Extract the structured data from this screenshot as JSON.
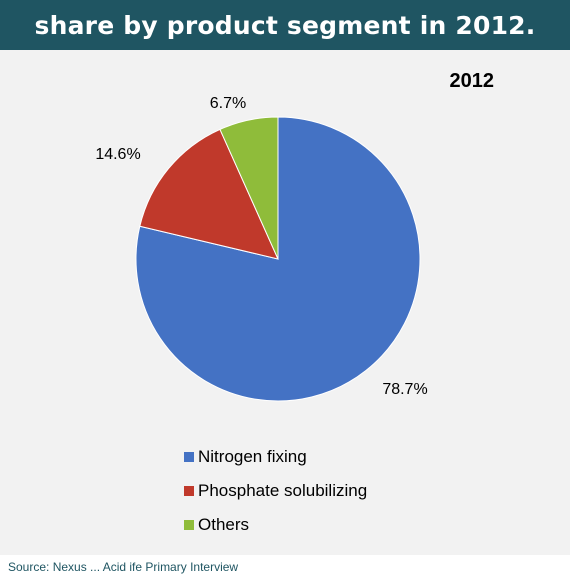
{
  "header": {
    "title": "share by product segment in 2012."
  },
  "chart_data": {
    "type": "pie",
    "title": "2012",
    "categories": [
      "Nitrogen fixing",
      "Phosphate solubilizing",
      "Others"
    ],
    "values": [
      78.7,
      14.6,
      6.7
    ],
    "value_labels": [
      "78.7%",
      "14.6%",
      "6.7%"
    ],
    "colors": [
      "#4472c4",
      "#c0392b",
      "#8fbc3a"
    ],
    "legend_position": "bottom"
  },
  "footer": {
    "source": "Source: Nexus ... Acid ife Primary Interview"
  }
}
